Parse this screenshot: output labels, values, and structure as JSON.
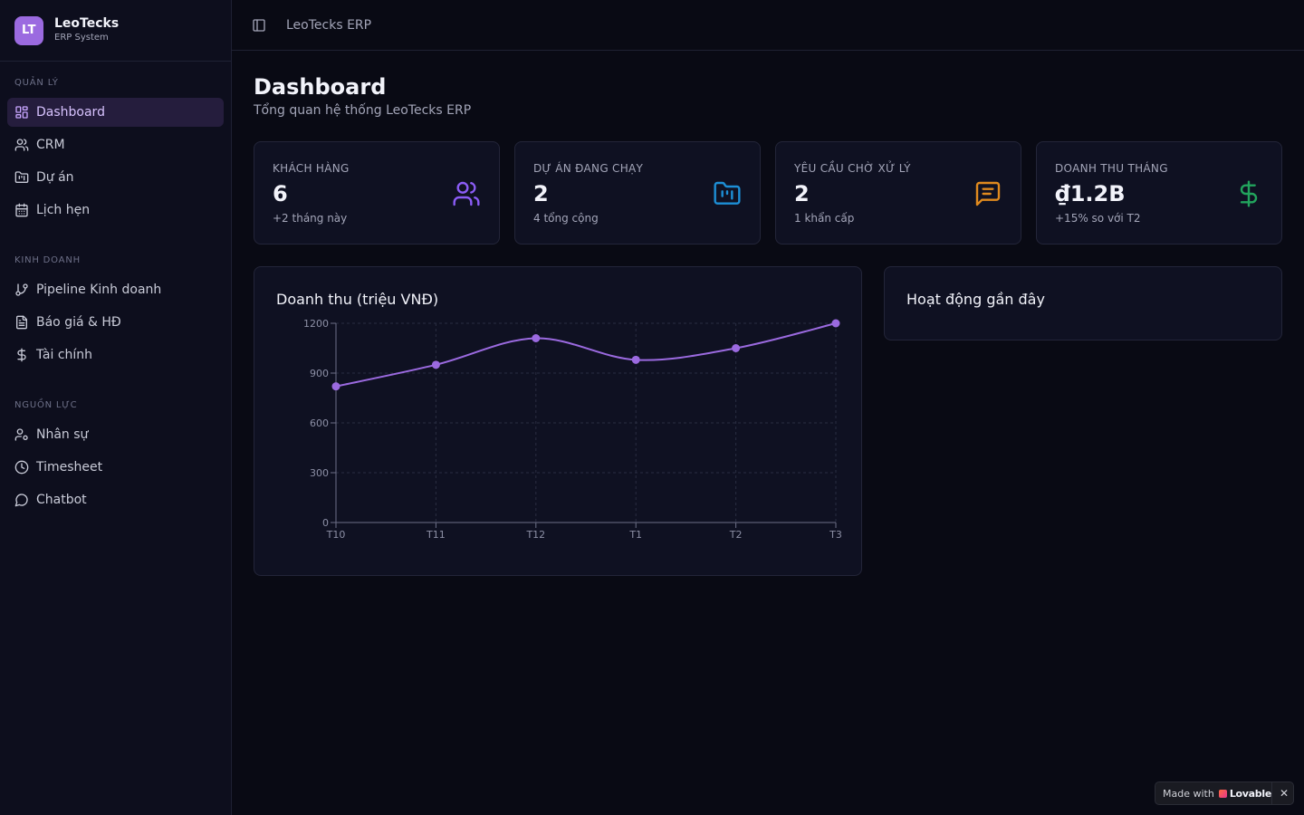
{
  "brand": {
    "logo": "LT",
    "name": "LeoTecks",
    "subtitle": "ERP System"
  },
  "sidebar": {
    "groups": [
      {
        "label": "QUẢN LÝ",
        "items": [
          {
            "label": "Dashboard",
            "icon": "layout-grid-icon",
            "active": true
          },
          {
            "label": "CRM",
            "icon": "users-icon"
          },
          {
            "label": "Dự án",
            "icon": "folder-icon"
          },
          {
            "label": "Lịch hẹn",
            "icon": "calendar-icon"
          }
        ]
      },
      {
        "label": "KINH DOANH",
        "items": [
          {
            "label": "Pipeline Kinh doanh",
            "icon": "git-branch-icon"
          },
          {
            "label": "Báo giá & HĐ",
            "icon": "file-text-icon"
          },
          {
            "label": "Tài chính",
            "icon": "dollar-icon"
          }
        ]
      },
      {
        "label": "NGUỒN LỰC",
        "items": [
          {
            "label": "Nhân sự",
            "icon": "user-cog-icon"
          },
          {
            "label": "Timesheet",
            "icon": "clock-icon"
          },
          {
            "label": "Chatbot",
            "icon": "message-circle-icon"
          }
        ]
      }
    ]
  },
  "header": {
    "title": "LeoTecks ERP",
    "toggle_icon": "sidebar-toggle-icon"
  },
  "page": {
    "title": "Dashboard",
    "subtitle": "Tổng quan hệ thống LeoTecks ERP"
  },
  "stats": [
    {
      "label": "KHÁCH HÀNG",
      "value": "6",
      "note": "+2 tháng này",
      "icon": "users-icon",
      "color": "#8b5cf6"
    },
    {
      "label": "DỰ ÁN ĐANG CHẠY",
      "value": "2",
      "note": "4 tổng cộng",
      "icon": "folder-kanban-icon",
      "color": "#1d8fd6"
    },
    {
      "label": "YÊU CẦU CHỜ XỬ LÝ",
      "value": "2",
      "note": "1 khẩn cấp",
      "icon": "message-square-icon",
      "color": "#e08a1e"
    },
    {
      "label": "DOANH THU THÁNG",
      "value": "₫1.2B",
      "note": "+15% so với T2",
      "icon": "dollar-icon",
      "color": "#22a45d"
    }
  ],
  "revenue_card": {
    "title": "Doanh thu (triệu VNĐ)"
  },
  "activity_card": {
    "title": "Hoạt động gần đây"
  },
  "chart_data": {
    "type": "line",
    "categories": [
      "T10",
      "T11",
      "T12",
      "T1",
      "T2",
      "T3"
    ],
    "series": [
      {
        "values": [
          820,
          950,
          1110,
          980,
          1050,
          1200
        ]
      }
    ],
    "ylim": [
      0,
      1200
    ],
    "yticks": [
      0,
      300,
      600,
      900,
      1200
    ],
    "grid": true,
    "color": "#9b6ae0"
  },
  "badge": {
    "made_with": "Made with",
    "brand": "Lovable",
    "close": "✕"
  }
}
